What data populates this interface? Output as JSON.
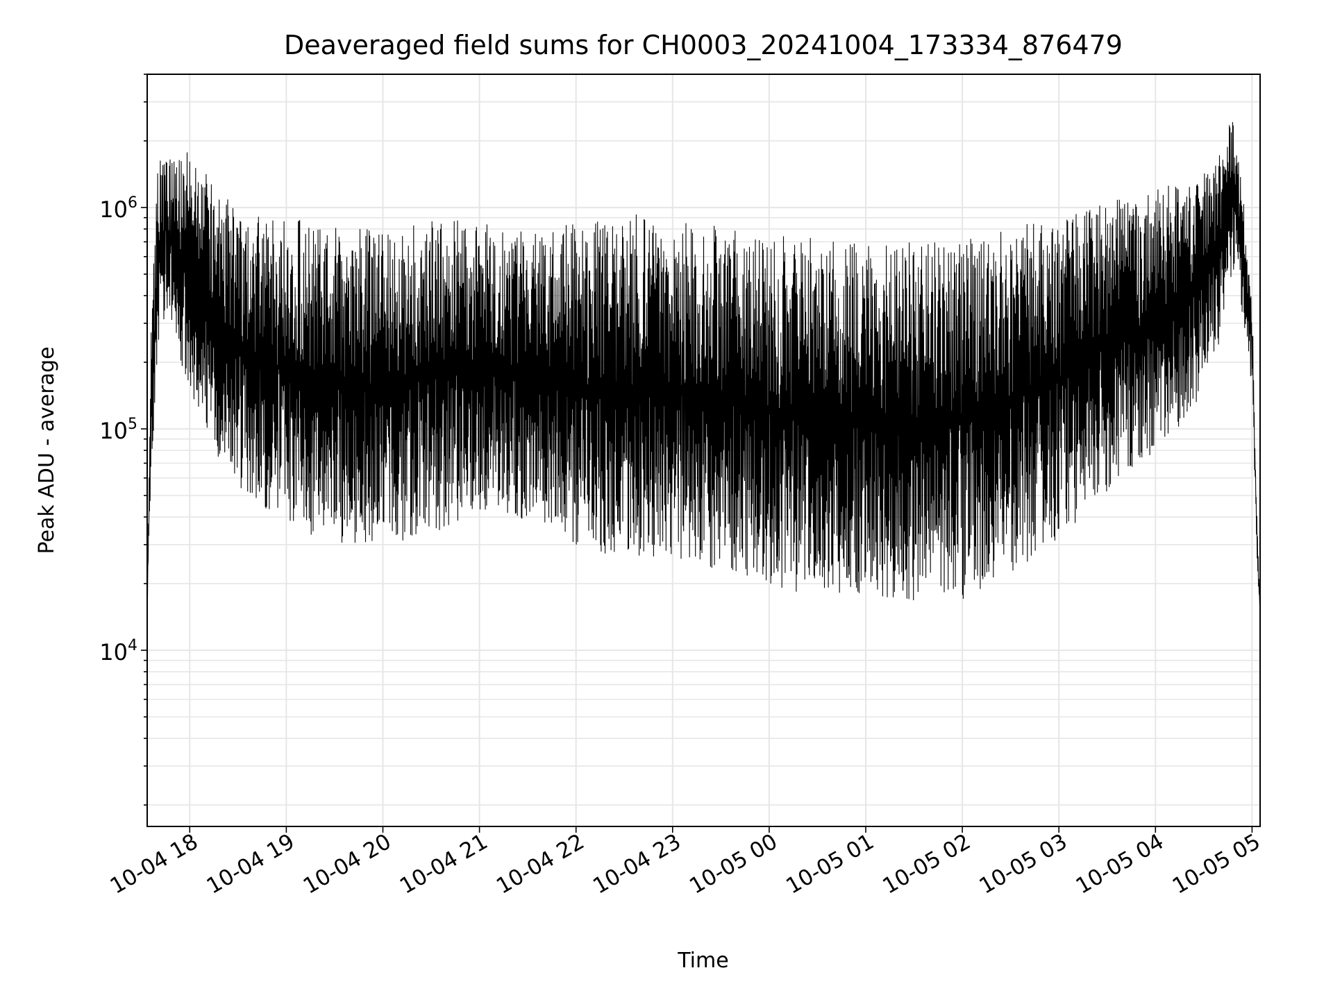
{
  "chart_data": {
    "type": "line",
    "title": "Deaveraged field sums for CH0003_20241004_173334_876479",
    "xlabel": "Time",
    "ylabel": "Peak ADU - average",
    "yscale": "log",
    "ylim": [
      1600,
      4000000
    ],
    "xlim": [
      "2024-10-04 17:33:34",
      "2024-10-05 05:05:00"
    ],
    "grid": true,
    "line_color": "#000000",
    "grid_color": "#e6e6e6",
    "x_ticks": [
      {
        "t": "2024-10-04 18:00",
        "label": "10-04 18"
      },
      {
        "t": "2024-10-04 19:00",
        "label": "10-04 19"
      },
      {
        "t": "2024-10-04 20:00",
        "label": "10-04 20"
      },
      {
        "t": "2024-10-04 21:00",
        "label": "10-04 21"
      },
      {
        "t": "2024-10-04 22:00",
        "label": "10-04 22"
      },
      {
        "t": "2024-10-04 23:00",
        "label": "10-04 23"
      },
      {
        "t": "2024-10-05 00:00",
        "label": "10-05 00"
      },
      {
        "t": "2024-10-05 01:00",
        "label": "10-05 01"
      },
      {
        "t": "2024-10-05 02:00",
        "label": "10-05 02"
      },
      {
        "t": "2024-10-05 03:00",
        "label": "10-05 03"
      },
      {
        "t": "2024-10-05 04:00",
        "label": "10-05 04"
      },
      {
        "t": "2024-10-05 05:00",
        "label": "10-05 05"
      }
    ],
    "y_ticks": [
      {
        "value": 10000,
        "base": "10",
        "exp": "4"
      },
      {
        "value": 100000,
        "base": "10",
        "exp": "5"
      },
      {
        "value": 1000000,
        "base": "10",
        "exp": "6"
      }
    ],
    "series": [
      {
        "x": [
          "2024-10-04 17:33:34",
          "2024-10-04 17:36",
          "2024-10-04 17:40",
          "2024-10-04 17:45",
          "2024-10-04 17:50",
          "2024-10-04 18:00",
          "2024-10-04 18:15",
          "2024-10-04 18:30",
          "2024-10-04 18:45",
          "2024-10-04 19:00",
          "2024-10-04 19:20",
          "2024-10-04 19:40",
          "2024-10-04 20:00",
          "2024-10-04 20:20",
          "2024-10-04 20:40",
          "2024-10-04 21:00",
          "2024-10-04 21:20",
          "2024-10-04 21:40",
          "2024-10-04 22:00",
          "2024-10-04 22:20",
          "2024-10-04 22:40",
          "2024-10-04 23:00",
          "2024-10-04 23:20",
          "2024-10-04 23:40",
          "2024-10-05 00:00",
          "2024-10-05 00:20",
          "2024-10-05 00:40",
          "2024-10-05 01:00",
          "2024-10-05 01:20",
          "2024-10-05 01:40",
          "2024-10-05 02:00",
          "2024-10-05 02:20",
          "2024-10-05 02:40",
          "2024-10-05 03:00",
          "2024-10-05 03:20",
          "2024-10-05 03:40",
          "2024-10-05 04:00",
          "2024-10-05 04:15",
          "2024-10-05 04:30",
          "2024-10-05 04:40",
          "2024-10-05 04:48",
          "2024-10-05 04:55",
          "2024-10-05 05:00",
          "2024-10-05 05:03",
          "2024-10-05 05:05"
        ],
        "upper": [
          15000,
          300000,
          1500000,
          2100000,
          1900000,
          1800000,
          1300000,
          1000000,
          950000,
          900000,
          850000,
          800000,
          800000,
          850000,
          900000,
          850000,
          800000,
          800000,
          850000,
          900000,
          950000,
          900000,
          850000,
          800000,
          750000,
          750000,
          700000,
          700000,
          700000,
          720000,
          750000,
          800000,
          850000,
          900000,
          1000000,
          1100000,
          1200000,
          1300000,
          1500000,
          1800000,
          2700000,
          1100000,
          400000,
          40000,
          15000
        ],
        "lower": [
          15000,
          60000,
          200000,
          300000,
          250000,
          150000,
          80000,
          55000,
          45000,
          38000,
          32000,
          30000,
          30000,
          32000,
          35000,
          38000,
          40000,
          38000,
          30000,
          27000,
          25000,
          26000,
          24000,
          22000,
          19000,
          18000,
          18000,
          18000,
          17000,
          16000,
          17000,
          20000,
          25000,
          30000,
          45000,
          60000,
          80000,
          100000,
          150000,
          250000,
          500000,
          300000,
          150000,
          25000,
          15000
        ]
      }
    ]
  }
}
